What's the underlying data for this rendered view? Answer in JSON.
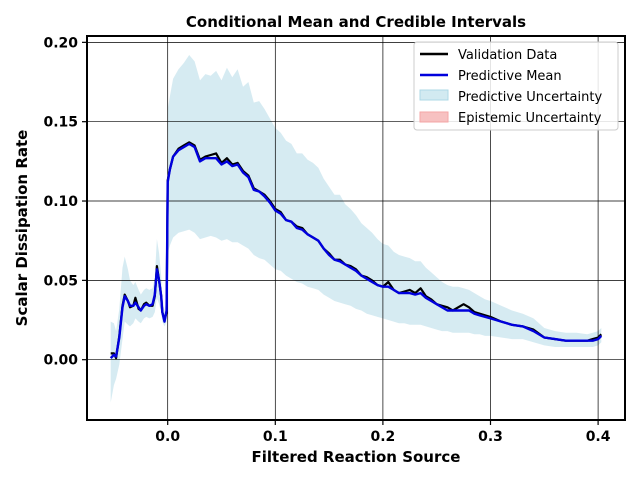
{
  "chart_data": {
    "type": "line",
    "title": "Conditional Mean and Credible Intervals",
    "xlabel": "Filtered Reaction Source",
    "ylabel": "Scalar Dissipation Rate",
    "xlim": [
      -0.075,
      0.425
    ],
    "ylim": [
      -0.038,
      0.204
    ],
    "xticks": [
      0.0,
      0.1,
      0.2,
      0.3,
      0.4
    ],
    "xtick_labels": [
      "0.0",
      "0.1",
      "0.2",
      "0.3",
      "0.4"
    ],
    "yticks": [
      0.0,
      0.05,
      0.1,
      0.15,
      0.2
    ],
    "ytick_labels": [
      "0.00",
      "0.05",
      "0.10",
      "0.15",
      "0.20"
    ],
    "grid": true,
    "legend_position": "top-right",
    "colors": {
      "validation": "#000000",
      "mean": "#0000dd",
      "predictive_band": "#add8e6",
      "epistemic_band": "#f4a6a6"
    },
    "x": [
      -0.053,
      -0.05,
      -0.048,
      -0.045,
      -0.042,
      -0.04,
      -0.037,
      -0.035,
      -0.032,
      -0.03,
      -0.027,
      -0.025,
      -0.022,
      -0.02,
      -0.017,
      -0.014,
      -0.012,
      -0.01,
      -0.008,
      -0.006,
      -0.005,
      -0.003,
      -0.001,
      0.0,
      0.002,
      0.005,
      0.01,
      0.015,
      0.02,
      0.025,
      0.03,
      0.035,
      0.04,
      0.045,
      0.05,
      0.055,
      0.06,
      0.065,
      0.07,
      0.075,
      0.08,
      0.085,
      0.09,
      0.095,
      0.1,
      0.105,
      0.11,
      0.115,
      0.12,
      0.125,
      0.13,
      0.135,
      0.14,
      0.145,
      0.15,
      0.155,
      0.16,
      0.165,
      0.17,
      0.175,
      0.18,
      0.185,
      0.19,
      0.195,
      0.2,
      0.205,
      0.21,
      0.215,
      0.22,
      0.225,
      0.23,
      0.235,
      0.24,
      0.245,
      0.25,
      0.255,
      0.26,
      0.265,
      0.27,
      0.275,
      0.28,
      0.285,
      0.29,
      0.295,
      0.3,
      0.31,
      0.32,
      0.33,
      0.34,
      0.35,
      0.36,
      0.37,
      0.38,
      0.39,
      0.395,
      0.4,
      0.403
    ],
    "series": [
      {
        "name": "Validation Data",
        "values": [
          0.004,
          0.004,
          0.001,
          0.015,
          0.034,
          0.041,
          0.037,
          0.033,
          0.034,
          0.039,
          0.032,
          0.031,
          0.035,
          0.036,
          0.034,
          0.034,
          0.04,
          0.059,
          0.05,
          0.04,
          0.03,
          0.025,
          0.03,
          0.113,
          0.12,
          0.128,
          0.133,
          0.135,
          0.137,
          0.135,
          0.126,
          0.128,
          0.129,
          0.13,
          0.124,
          0.127,
          0.123,
          0.124,
          0.119,
          0.116,
          0.108,
          0.106,
          0.104,
          0.1,
          0.095,
          0.093,
          0.088,
          0.087,
          0.084,
          0.083,
          0.079,
          0.077,
          0.075,
          0.07,
          0.067,
          0.063,
          0.063,
          0.06,
          0.059,
          0.057,
          0.053,
          0.052,
          0.05,
          0.047,
          0.046,
          0.049,
          0.044,
          0.042,
          0.043,
          0.044,
          0.042,
          0.045,
          0.04,
          0.038,
          0.035,
          0.034,
          0.033,
          0.031,
          0.033,
          0.035,
          0.033,
          0.03,
          0.029,
          0.028,
          0.027,
          0.024,
          0.022,
          0.021,
          0.019,
          0.014,
          0.013,
          0.012,
          0.012,
          0.012,
          0.013,
          0.014,
          0.016
        ]
      },
      {
        "name": "Predictive Mean",
        "values": [
          0.001,
          0.003,
          0.002,
          0.014,
          0.033,
          0.04,
          0.037,
          0.034,
          0.034,
          0.036,
          0.033,
          0.031,
          0.034,
          0.035,
          0.034,
          0.035,
          0.041,
          0.057,
          0.05,
          0.04,
          0.03,
          0.024,
          0.031,
          0.112,
          0.12,
          0.128,
          0.132,
          0.134,
          0.136,
          0.134,
          0.125,
          0.127,
          0.127,
          0.127,
          0.123,
          0.125,
          0.122,
          0.123,
          0.118,
          0.115,
          0.107,
          0.106,
          0.103,
          0.099,
          0.094,
          0.092,
          0.088,
          0.087,
          0.083,
          0.082,
          0.079,
          0.077,
          0.075,
          0.07,
          0.066,
          0.063,
          0.062,
          0.06,
          0.058,
          0.056,
          0.053,
          0.051,
          0.049,
          0.047,
          0.046,
          0.046,
          0.044,
          0.042,
          0.042,
          0.042,
          0.041,
          0.042,
          0.039,
          0.037,
          0.035,
          0.033,
          0.031,
          0.031,
          0.031,
          0.031,
          0.031,
          0.029,
          0.028,
          0.027,
          0.026,
          0.024,
          0.022,
          0.021,
          0.018,
          0.014,
          0.013,
          0.012,
          0.012,
          0.012,
          0.012,
          0.013,
          0.015
        ]
      }
    ],
    "predictive_band": {
      "name": "Predictive Uncertainty",
      "lower": [
        -0.027,
        -0.016,
        -0.012,
        -0.003,
        0.013,
        0.024,
        0.022,
        0.021,
        0.023,
        0.026,
        0.024,
        0.023,
        0.026,
        0.027,
        0.026,
        0.027,
        0.03,
        0.039,
        0.035,
        0.03,
        0.024,
        0.021,
        0.024,
        0.067,
        0.072,
        0.077,
        0.08,
        0.081,
        0.082,
        0.08,
        0.076,
        0.077,
        0.078,
        0.077,
        0.075,
        0.076,
        0.074,
        0.074,
        0.072,
        0.07,
        0.066,
        0.064,
        0.063,
        0.06,
        0.057,
        0.056,
        0.053,
        0.051,
        0.049,
        0.048,
        0.046,
        0.045,
        0.044,
        0.041,
        0.039,
        0.037,
        0.036,
        0.035,
        0.034,
        0.032,
        0.031,
        0.029,
        0.028,
        0.027,
        0.026,
        0.025,
        0.024,
        0.023,
        0.023,
        0.022,
        0.022,
        0.022,
        0.021,
        0.02,
        0.019,
        0.018,
        0.018,
        0.017,
        0.017,
        0.017,
        0.017,
        0.016,
        0.016,
        0.015,
        0.015,
        0.014,
        0.013,
        0.013,
        0.011,
        0.009,
        0.008,
        0.008,
        0.008,
        0.008,
        0.008,
        0.009,
        0.011
      ],
      "upper": [
        0.024,
        0.023,
        0.018,
        0.032,
        0.058,
        0.065,
        0.057,
        0.05,
        0.047,
        0.049,
        0.044,
        0.041,
        0.044,
        0.045,
        0.044,
        0.045,
        0.052,
        0.076,
        0.067,
        0.053,
        0.04,
        0.03,
        0.039,
        0.158,
        0.166,
        0.177,
        0.183,
        0.187,
        0.192,
        0.188,
        0.176,
        0.18,
        0.179,
        0.182,
        0.176,
        0.184,
        0.178,
        0.183,
        0.172,
        0.175,
        0.162,
        0.163,
        0.158,
        0.152,
        0.146,
        0.143,
        0.138,
        0.136,
        0.13,
        0.13,
        0.126,
        0.124,
        0.121,
        0.114,
        0.109,
        0.104,
        0.104,
        0.098,
        0.095,
        0.091,
        0.086,
        0.083,
        0.08,
        0.076,
        0.073,
        0.072,
        0.068,
        0.066,
        0.065,
        0.064,
        0.062,
        0.062,
        0.058,
        0.055,
        0.052,
        0.049,
        0.047,
        0.046,
        0.046,
        0.045,
        0.044,
        0.042,
        0.04,
        0.038,
        0.037,
        0.034,
        0.031,
        0.029,
        0.026,
        0.02,
        0.018,
        0.017,
        0.017,
        0.016,
        0.017,
        0.018,
        0.02
      ]
    },
    "legend": [
      {
        "label": "Validation Data",
        "kind": "line",
        "color": "#000000"
      },
      {
        "label": "Predictive Mean",
        "kind": "line",
        "color": "#0000dd"
      },
      {
        "label": "Predictive Uncertainty",
        "kind": "patch",
        "color": "#add8e6"
      },
      {
        "label": "Epistemic Uncertainty",
        "kind": "patch",
        "color": "#f4a6a6"
      }
    ]
  }
}
